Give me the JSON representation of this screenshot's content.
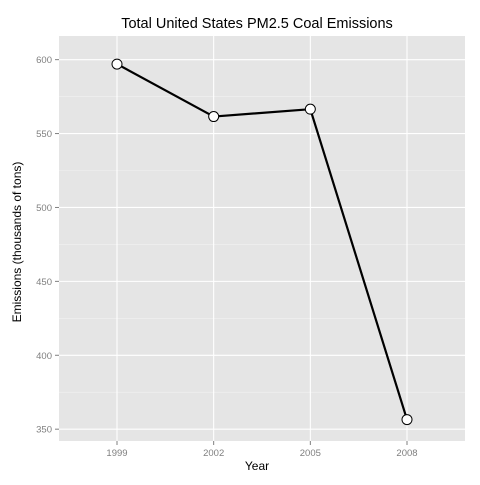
{
  "chart_data": {
    "type": "line",
    "title": "Total United States PM2.5 Coal Emissions",
    "xlabel": "Year",
    "ylabel": "Emissions (thousands of tons)",
    "categories": [
      "1999",
      "2002",
      "2005",
      "2008"
    ],
    "series": [
      {
        "values": [
          597,
          561.5,
          566.5,
          356.5
        ]
      }
    ],
    "yticks": [
      350,
      400,
      450,
      500,
      550,
      600
    ],
    "ylim": [
      342,
      616
    ],
    "grid": true,
    "legend": "none",
    "colors": {
      "panel": "#e5e5e5",
      "grid_major": "#ffffff",
      "grid_minor": "#f2f2f2",
      "line": "#000000",
      "marker_fill": "#ffffff",
      "tick_text": "#7f7f7f",
      "title_text": "#000000"
    }
  }
}
